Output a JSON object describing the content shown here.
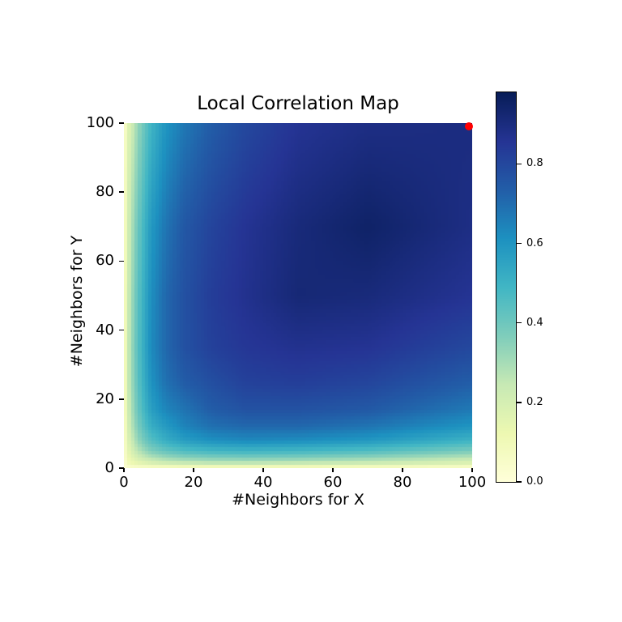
{
  "chart_data": {
    "type": "heatmap",
    "title": "Local Correlation Map",
    "xlabel": "#Neighbors for X",
    "ylabel": "#Neighbors for Y",
    "x_range": [
      0,
      100
    ],
    "y_range": [
      0,
      100
    ],
    "x_ticks": {
      "values": [
        0,
        20,
        40,
        60,
        80,
        100
      ],
      "labels": [
        "0",
        "20",
        "40",
        "60",
        "80",
        "100"
      ]
    },
    "y_ticks": {
      "values": [
        0,
        20,
        40,
        60,
        80,
        100
      ],
      "labels": [
        "0",
        "20",
        "40",
        "60",
        "80",
        "100"
      ]
    },
    "colorbar": {
      "vmin": 0.0,
      "vmax": 0.98,
      "ticks": [
        {
          "value": 0.0,
          "label": "0.0"
        },
        {
          "value": 0.2,
          "label": "0.2"
        },
        {
          "value": 0.4,
          "label": "0.4"
        },
        {
          "value": 0.6,
          "label": "0.6"
        },
        {
          "value": 0.8,
          "label": "0.8"
        }
      ]
    },
    "colormap": {
      "name": "YlGnBu",
      "positions": [
        0,
        0.125,
        0.25,
        0.375,
        0.5,
        0.625,
        0.75,
        0.875,
        1.0
      ],
      "colors": [
        "#ffffd9",
        "#edf8b1",
        "#c7e9b4",
        "#7fcdbb",
        "#41b6c4",
        "#1d91c0",
        "#225ea8",
        "#253494",
        "#081d58"
      ]
    },
    "grid": {
      "resolution": 100,
      "note": "correlation values sampled on coarse grid, rows ordered bottom(y small) to top(y large); bilinear interpolation between samples",
      "sample_x": [
        0.5,
        1.5,
        3,
        5,
        8,
        12,
        17,
        25,
        35,
        50,
        70,
        99.5
      ],
      "sample_y": [
        0.5,
        1.5,
        3,
        5,
        8,
        12,
        17,
        25,
        35,
        50,
        70,
        99.5
      ],
      "values": [
        [
          0.03,
          0.05,
          0.06,
          0.07,
          0.08,
          0.09,
          0.1,
          0.1,
          0.1,
          0.1,
          0.09,
          0.07
        ],
        [
          0.05,
          0.1,
          0.13,
          0.16,
          0.19,
          0.22,
          0.24,
          0.26,
          0.26,
          0.25,
          0.23,
          0.18
        ],
        [
          0.06,
          0.13,
          0.18,
          0.23,
          0.28,
          0.32,
          0.35,
          0.37,
          0.38,
          0.37,
          0.34,
          0.27
        ],
        [
          0.07,
          0.16,
          0.23,
          0.3,
          0.37,
          0.42,
          0.46,
          0.49,
          0.5,
          0.49,
          0.46,
          0.38
        ],
        [
          0.08,
          0.19,
          0.28,
          0.37,
          0.45,
          0.52,
          0.57,
          0.61,
          0.63,
          0.62,
          0.59,
          0.5
        ],
        [
          0.09,
          0.22,
          0.32,
          0.42,
          0.52,
          0.58,
          0.64,
          0.69,
          0.71,
          0.71,
          0.68,
          0.6
        ],
        [
          0.1,
          0.24,
          0.35,
          0.46,
          0.57,
          0.64,
          0.68,
          0.74,
          0.77,
          0.77,
          0.75,
          0.67
        ],
        [
          0.1,
          0.26,
          0.37,
          0.49,
          0.61,
          0.69,
          0.74,
          0.78,
          0.82,
          0.83,
          0.81,
          0.74
        ],
        [
          0.1,
          0.26,
          0.38,
          0.5,
          0.63,
          0.71,
          0.77,
          0.82,
          0.85,
          0.87,
          0.86,
          0.8
        ],
        [
          0.1,
          0.25,
          0.37,
          0.49,
          0.62,
          0.71,
          0.77,
          0.83,
          0.87,
          0.92,
          0.91,
          0.86
        ],
        [
          0.09,
          0.23,
          0.34,
          0.46,
          0.59,
          0.68,
          0.75,
          0.81,
          0.86,
          0.91,
          0.95,
          0.89
        ],
        [
          0.07,
          0.18,
          0.27,
          0.38,
          0.5,
          0.6,
          0.67,
          0.74,
          0.8,
          0.86,
          0.89,
          0.9
        ]
      ]
    },
    "marker": {
      "x": 99,
      "y": 99,
      "color": "#ff0000",
      "shape": "circle"
    }
  },
  "colors": {
    "background": "#ffffff",
    "text": "#000000",
    "tick": "#000000"
  }
}
